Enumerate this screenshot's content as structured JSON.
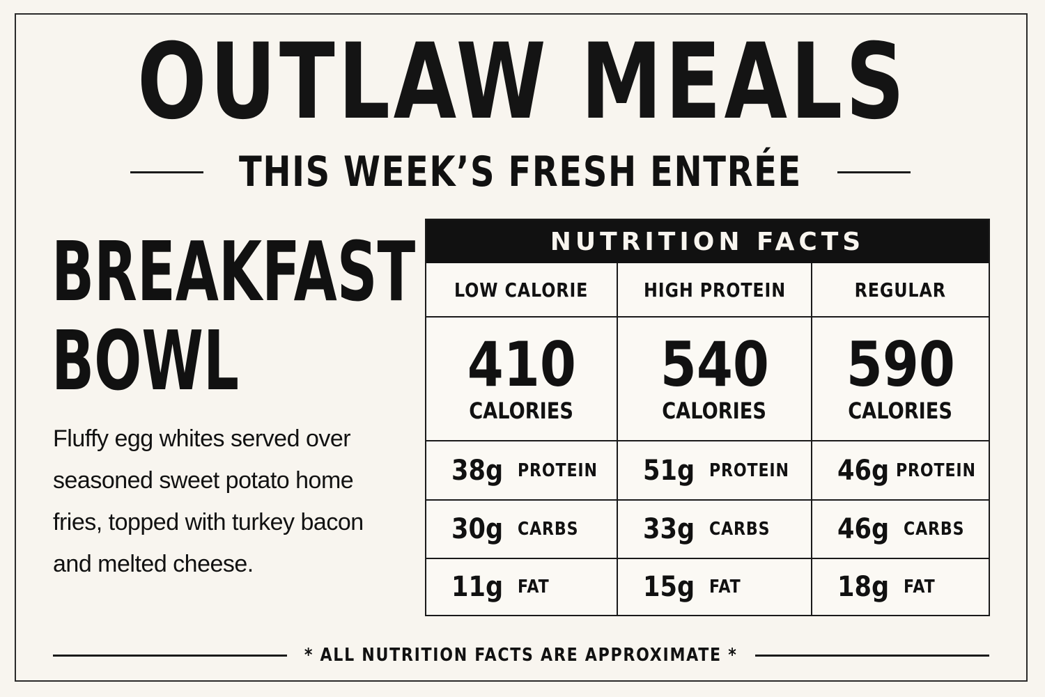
{
  "brand": "OUTLAW MEALS",
  "subtitle": "THIS WEEK’S FRESH ENTRÉE",
  "meal": {
    "name_line1": "BREAKFAST",
    "name_line2": "BOWL",
    "description": "Fluffy egg whites served over seasoned sweet potato home fries, topped with turkey bacon and melted cheese."
  },
  "nutrition": {
    "title": "NUTRITION FACTS",
    "options": [
      {
        "name": "LOW CALORIE",
        "calories": "410",
        "calories_label": "CALORIES",
        "protein": "38g",
        "protein_label": "PROTEIN",
        "carbs": "30g",
        "carbs_label": "CARBS",
        "fat": "11g",
        "fat_label": "FAT"
      },
      {
        "name": "HIGH PROTEIN",
        "calories": "540",
        "calories_label": "CALORIES",
        "protein": "51g",
        "protein_label": "PROTEIN",
        "carbs": "33g",
        "carbs_label": "CARBS",
        "fat": "15g",
        "fat_label": "FAT"
      },
      {
        "name": "REGULAR",
        "calories": "590",
        "calories_label": "CALORIES",
        "protein": "46g",
        "protein_label": "PROTEIN",
        "carbs": "46g",
        "carbs_label": "CARBS",
        "fat": "18g",
        "fat_label": "FAT"
      }
    ]
  },
  "footnote": "* ALL NUTRITION FACTS ARE APPROXIMATE *"
}
